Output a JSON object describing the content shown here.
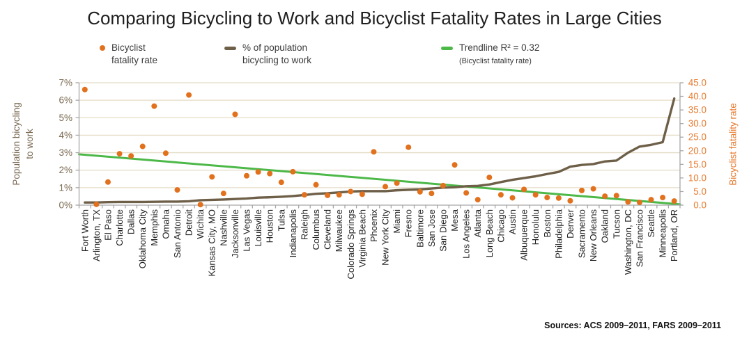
{
  "title": "Comparing Bicycling to Work and Bicyclist Fatality Rates in Large Cities",
  "legend": {
    "fatality": {
      "line1": "Bicyclist",
      "line2": "fatality rate"
    },
    "bike": {
      "line1": "% of population",
      "line2": "bicycling to work"
    },
    "trend": {
      "line1": "Trendline R² = 0.32",
      "line2": "(Bicyclist fatality rate)"
    }
  },
  "axes": {
    "left_title_line1": "Population bicycling",
    "left_title_line2": "to work",
    "right_title": "Bicyclist fatality rate",
    "left_tick_labels": [
      "0%",
      "1%",
      "2%",
      "3%",
      "4%",
      "5%",
      "6%",
      "7%"
    ],
    "right_tick_labels": [
      "0.0",
      "5.0",
      "10.0",
      "15.0",
      "20.0",
      "25.0",
      "30.0",
      "35.0",
      "40.0",
      "45.0"
    ]
  },
  "source": "Sources: ACS 2009–2011, FARS 2009–2011",
  "colors": {
    "orange": "#E2711E",
    "orange_label": "#E87A2E",
    "brown": "#6E5F48",
    "brown_label": "#7A6A52",
    "green": "#4CB848",
    "gridline": "#E5DCC6",
    "axis_line": "#A6A6A6",
    "city_label": "#1F1F1F"
  },
  "chart_data": {
    "type": "line",
    "title": "Comparing Bicycling to Work and Bicyclist Fatality Rates in Large Cities",
    "categories": [
      "Fort Worth",
      "Arlington, TX",
      "El Paso",
      "Charlotte",
      "Dallas",
      "Oklahoma City",
      "Memphis",
      "Omaha",
      "San Antonio",
      "Detroit",
      "Wichita",
      "Kansas City, MO",
      "Nashville",
      "Jacksonville",
      "Las Vegas",
      "Louisville",
      "Houston",
      "Tulsa",
      "Indianapolis",
      "Raleigh",
      "Columbus",
      "Cleveland",
      "Milwaukee",
      "Colorado Springs",
      "Virginia Beach",
      "Phoenix",
      "New York City",
      "Miami",
      "Fresno",
      "Baltimore",
      "San Jose",
      "San Diego",
      "Mesa",
      "Los Angeles",
      "Atlanta",
      "Long Beach",
      "Chicago",
      "Austin",
      "Albuquerque",
      "Honolulu",
      "Boston",
      "Philadelphia",
      "Denver",
      "Sacramento",
      "New Orleans",
      "Oakland",
      "Tucson",
      "Washington, DC",
      "San Francisco",
      "Seattle",
      "Minneapolis",
      "Portland, OR"
    ],
    "series": [
      {
        "name": "Bicyclist fatality rate",
        "render": "scatter",
        "axis": "right",
        "values": [
          42.5,
          0.3,
          8.5,
          18.9,
          18.1,
          21.6,
          36.4,
          19.1,
          5.6,
          40.5,
          0.2,
          10.4,
          4.3,
          33.4,
          10.8,
          12.2,
          11.6,
          8.4,
          12.3,
          3.8,
          7.5,
          3.6,
          3.8,
          5.0,
          4.0,
          19.6,
          6.8,
          8.1,
          21.3,
          4.9,
          4.3,
          7.2,
          14.8,
          4.5,
          2.0,
          10.2,
          3.8,
          2.7,
          5.8,
          3.8,
          2.8,
          2.6,
          1.6,
          5.4,
          6.0,
          3.3,
          3.5,
          1.2,
          1.0,
          2.0,
          2.8,
          1.5
        ]
      },
      {
        "name": "% of population bicycling to work",
        "render": "line",
        "axis": "left",
        "values": [
          0.15,
          0.15,
          0.17,
          0.18,
          0.18,
          0.18,
          0.19,
          0.2,
          0.2,
          0.22,
          0.28,
          0.3,
          0.32,
          0.35,
          0.38,
          0.43,
          0.45,
          0.48,
          0.52,
          0.58,
          0.65,
          0.68,
          0.73,
          0.78,
          0.8,
          0.8,
          0.8,
          0.85,
          0.88,
          0.9,
          0.95,
          1.0,
          1.02,
          1.08,
          1.1,
          1.18,
          1.32,
          1.45,
          1.55,
          1.65,
          1.78,
          1.9,
          2.2,
          2.3,
          2.35,
          2.5,
          2.55,
          3.0,
          3.35,
          3.45,
          3.6,
          6.1
        ]
      },
      {
        "name": "Trendline (Bicyclist fatality rate)",
        "render": "trendline",
        "axis": "right",
        "r_squared": 0.32,
        "start_value": 18.7,
        "end_value": 0.3
      }
    ],
    "left_axis": {
      "label": "Population bicycling to work",
      "range": [
        0,
        7
      ],
      "unit": "%",
      "tick_step": 1
    },
    "right_axis": {
      "label": "Bicyclist fatality rate",
      "range": [
        0,
        45
      ],
      "tick_step": 5
    },
    "grid": true,
    "legend_position": "top",
    "source": "Sources: ACS 2009–2011, FARS 2009–2011"
  }
}
